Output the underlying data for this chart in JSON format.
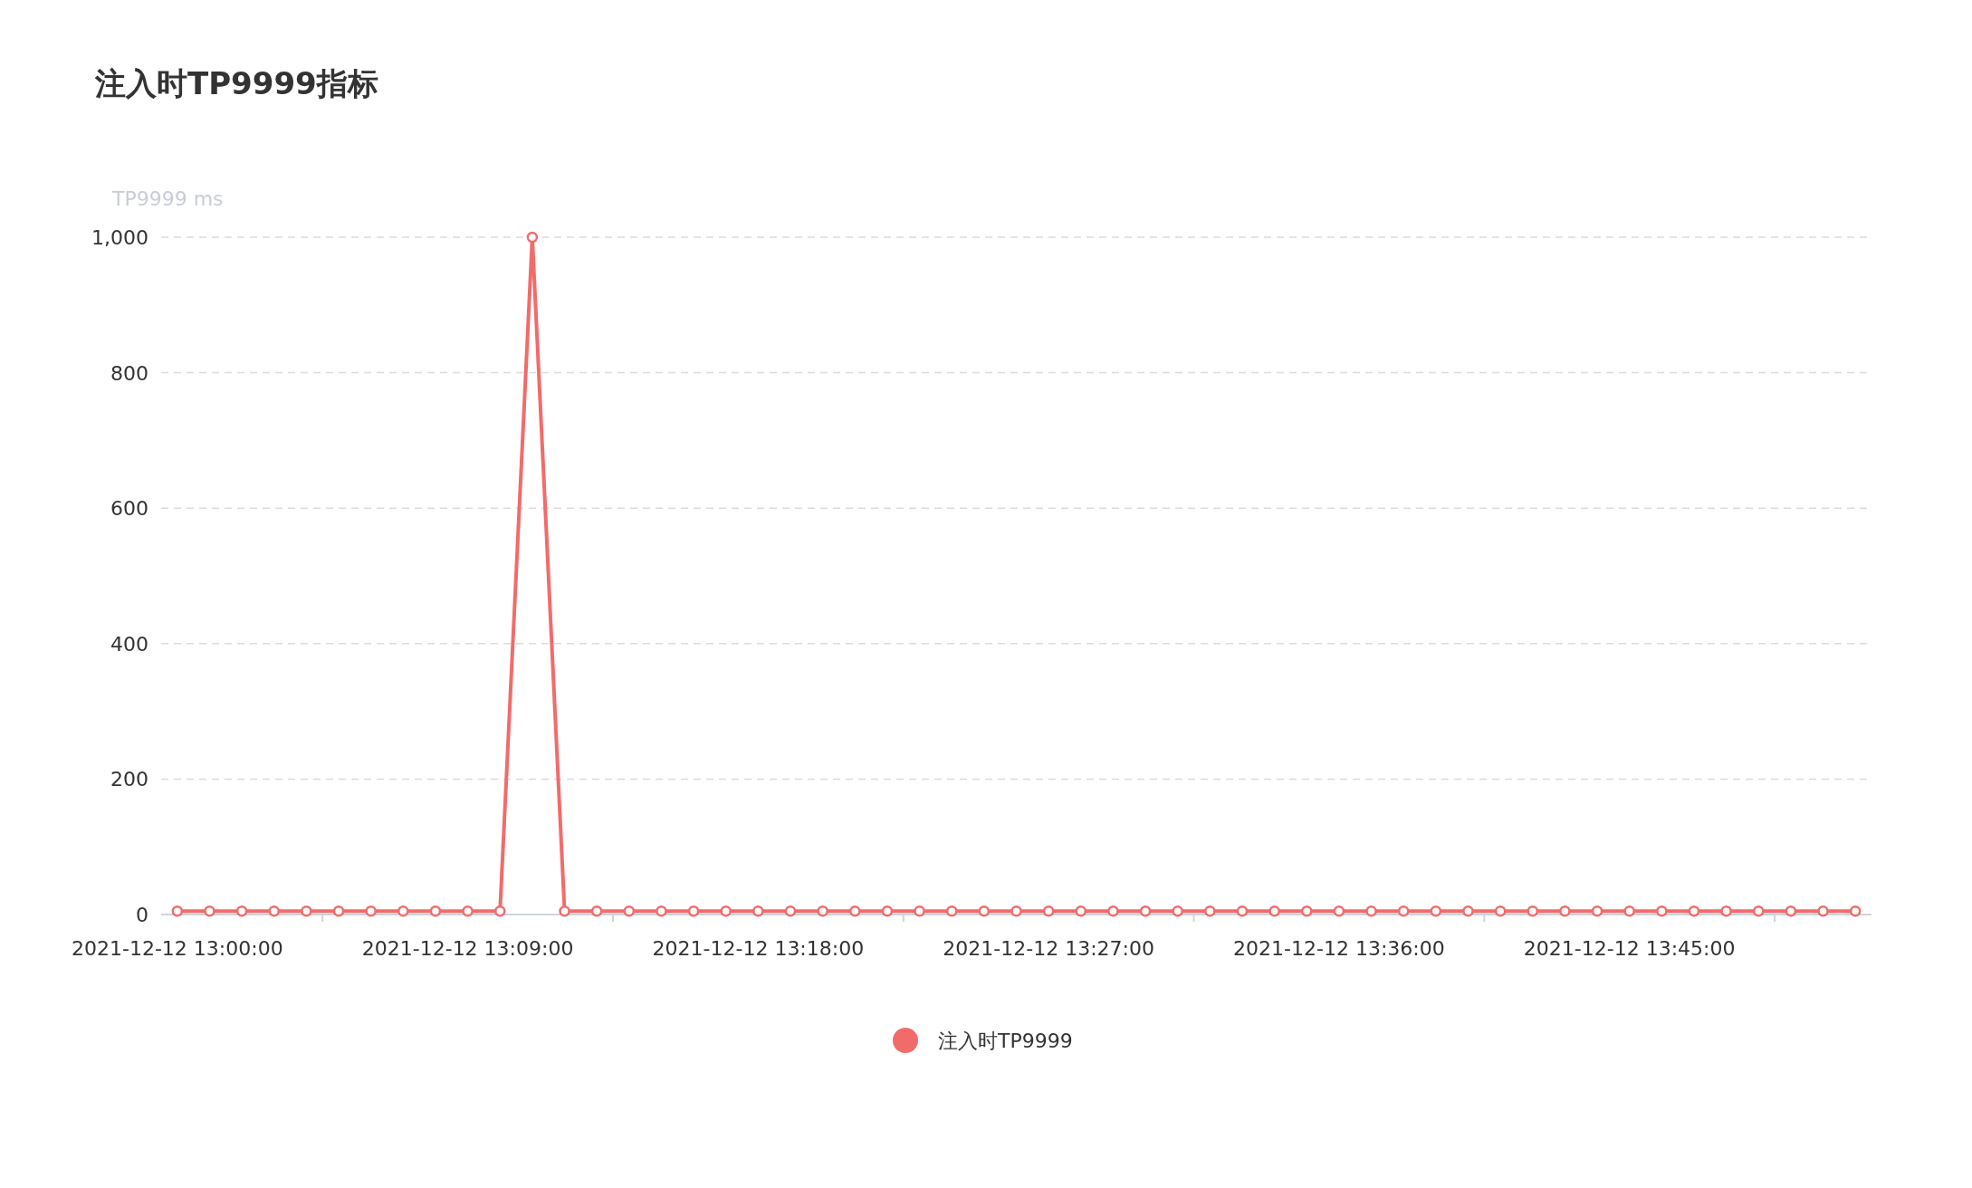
{
  "chart_data": {
    "type": "line",
    "title": "注入时TP9999指标",
    "ylabel": "TP9999 ms",
    "categories": [
      "2021-12-12 13:00:00",
      null,
      null,
      null,
      null,
      null,
      null,
      null,
      null,
      "2021-12-12 13:09:00",
      null,
      null,
      null,
      null,
      null,
      null,
      null,
      null,
      "2021-12-12 13:18:00",
      null,
      null,
      null,
      null,
      null,
      null,
      null,
      null,
      "2021-12-12 13:27:00",
      null,
      null,
      null,
      null,
      null,
      null,
      null,
      null,
      "2021-12-12 13:36:00",
      null,
      null,
      null,
      null,
      null,
      null,
      null,
      null,
      "2021-12-12 13:45:00",
      null,
      null,
      null,
      null,
      null,
      null,
      null
    ],
    "series": [
      {
        "name": "注入时TP9999",
        "color": "#f26b6b",
        "values": [
          5,
          5,
          5,
          5,
          5,
          5,
          5,
          5,
          5,
          5,
          5,
          1000,
          5,
          5,
          5,
          5,
          5,
          5,
          5,
          5,
          5,
          5,
          5,
          5,
          5,
          5,
          5,
          5,
          5,
          5,
          5,
          5,
          5,
          5,
          5,
          5,
          5,
          5,
          5,
          5,
          5,
          5,
          5,
          5,
          5,
          5,
          5,
          5,
          5,
          5,
          5,
          5,
          5
        ]
      }
    ],
    "ylim": [
      0,
      1000
    ],
    "yticks": [
      0,
      200,
      400,
      600,
      800,
      {
        "value": 1000,
        "label": "1,000"
      }
    ],
    "grid": "y",
    "legend": "bottom",
    "marker": "circle",
    "line_style": "solid"
  }
}
